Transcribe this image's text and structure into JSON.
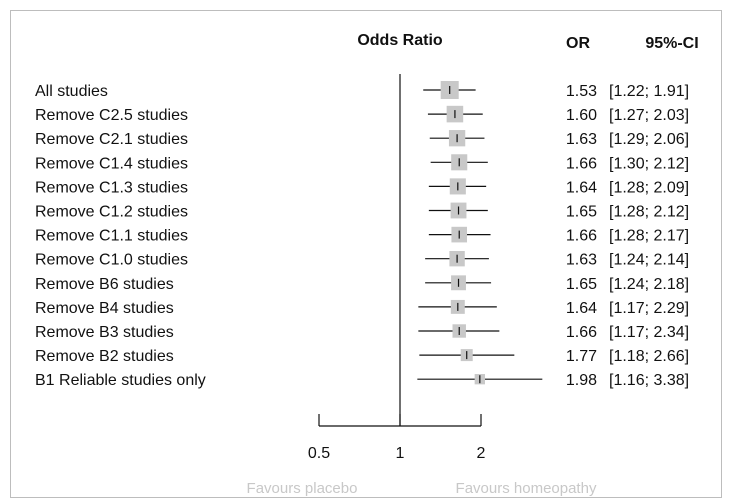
{
  "chart_data": {
    "type": "forest",
    "header": {
      "effect": "Odds Ratio",
      "or": "OR",
      "ci": "95%-CI"
    },
    "rows": [
      {
        "label": "All studies",
        "or": 1.53,
        "lo": 1.22,
        "hi": 1.91,
        "or_text": "1.53",
        "ci_text": "[1.22; 1.91]",
        "weight": 1.0
      },
      {
        "label": "Remove C2.5 studies",
        "or": 1.6,
        "lo": 1.27,
        "hi": 2.03,
        "or_text": "1.60",
        "ci_text": "[1.27; 2.03]",
        "weight": 0.88
      },
      {
        "label": "Remove C2.1 studies",
        "or": 1.63,
        "lo": 1.29,
        "hi": 2.06,
        "or_text": "1.63",
        "ci_text": "[1.29; 2.06]",
        "weight": 0.86
      },
      {
        "label": "Remove C1.4 studies",
        "or": 1.66,
        "lo": 1.3,
        "hi": 2.12,
        "or_text": "1.66",
        "ci_text": "[1.30; 2.12]",
        "weight": 0.84
      },
      {
        "label": "Remove C1.3 studies",
        "or": 1.64,
        "lo": 1.28,
        "hi": 2.09,
        "or_text": "1.64",
        "ci_text": "[1.28; 2.09]",
        "weight": 0.84
      },
      {
        "label": "Remove C1.2 studies",
        "or": 1.65,
        "lo": 1.28,
        "hi": 2.12,
        "or_text": "1.65",
        "ci_text": "[1.28; 2.12]",
        "weight": 0.82
      },
      {
        "label": "Remove C1.1 studies",
        "or": 1.66,
        "lo": 1.28,
        "hi": 2.17,
        "or_text": "1.66",
        "ci_text": "[1.28; 2.17]",
        "weight": 0.8
      },
      {
        "label": "Remove C1.0 studies",
        "or": 1.63,
        "lo": 1.24,
        "hi": 2.14,
        "or_text": "1.63",
        "ci_text": "[1.24; 2.14]",
        "weight": 0.78
      },
      {
        "label": "Remove B6 studies",
        "or": 1.65,
        "lo": 1.24,
        "hi": 2.18,
        "or_text": "1.65",
        "ci_text": "[1.24; 2.18]",
        "weight": 0.74
      },
      {
        "label": "Remove B4 studies",
        "or": 1.64,
        "lo": 1.17,
        "hi": 2.29,
        "or_text": "1.64",
        "ci_text": "[1.17; 2.29]",
        "weight": 0.66
      },
      {
        "label": "Remove B3 studies",
        "or": 1.66,
        "lo": 1.17,
        "hi": 2.34,
        "or_text": "1.66",
        "ci_text": "[1.17; 2.34]",
        "weight": 0.62
      },
      {
        "label": "Remove B2 studies",
        "or": 1.77,
        "lo": 1.18,
        "hi": 2.66,
        "or_text": "1.77",
        "ci_text": "[1.18; 2.66]",
        "weight": 0.5
      },
      {
        "label": "B1 Reliable studies only",
        "or": 1.98,
        "lo": 1.16,
        "hi": 3.38,
        "or_text": "1.98",
        "ci_text": "[1.16; 3.38]",
        "weight": 0.36
      }
    ],
    "x_axis": {
      "scale": "log",
      "ticks": [
        0.5,
        1,
        2
      ],
      "tick_labels": [
        "0.5",
        "1",
        "2"
      ],
      "reference_line": 1
    },
    "favours": {
      "left": "Favours placebo",
      "right": "Favours homeopathy"
    }
  }
}
